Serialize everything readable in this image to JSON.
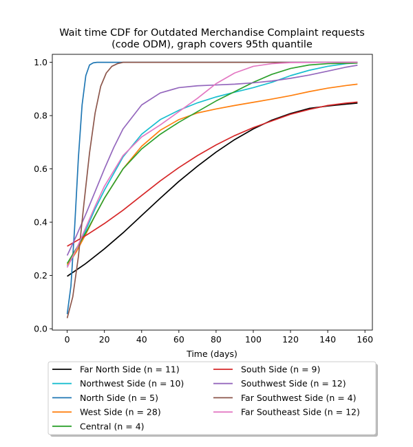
{
  "chart_data": {
    "type": "line",
    "title": "Wait time CDF for Outdated Merchandise Complaint  requests",
    "subtitle": "(code ODM), graph covers 95th quantile",
    "xlabel": "Time (days)",
    "ylabel": "",
    "xlim": [
      -8,
      164
    ],
    "ylim": [
      -0.005,
      1.03
    ],
    "xticks": [
      0,
      20,
      40,
      60,
      80,
      100,
      120,
      140,
      160
    ],
    "yticks": [
      0.0,
      0.2,
      0.4,
      0.6,
      0.8,
      1.0
    ],
    "xtick_labels": [
      "0",
      "20",
      "40",
      "60",
      "80",
      "100",
      "120",
      "140",
      "160"
    ],
    "ytick_labels": [
      "0.0",
      "0.2",
      "0.4",
      "0.6",
      "0.8",
      "1.0"
    ],
    "grid": false,
    "legend_position": "below plot, two columns",
    "series": [
      {
        "name": "Far North Side (n = 11)",
        "color": "#000000",
        "points": [
          [
            0,
            0.197
          ],
          [
            10,
            0.245
          ],
          [
            20,
            0.3
          ],
          [
            30,
            0.36
          ],
          [
            40,
            0.425
          ],
          [
            50,
            0.49
          ],
          [
            60,
            0.553
          ],
          [
            70,
            0.61
          ],
          [
            80,
            0.663
          ],
          [
            90,
            0.71
          ],
          [
            100,
            0.75
          ],
          [
            110,
            0.783
          ],
          [
            120,
            0.808
          ],
          [
            130,
            0.827
          ],
          [
            140,
            0.836
          ],
          [
            150,
            0.843
          ],
          [
            156,
            0.847
          ]
        ]
      },
      {
        "name": "Northwest Side (n = 10)",
        "color": "#17becf",
        "points": [
          [
            0,
            0.235
          ],
          [
            5,
            0.29
          ],
          [
            10,
            0.37
          ],
          [
            15,
            0.45
          ],
          [
            20,
            0.52
          ],
          [
            30,
            0.645
          ],
          [
            40,
            0.73
          ],
          [
            50,
            0.785
          ],
          [
            60,
            0.82
          ],
          [
            70,
            0.848
          ],
          [
            80,
            0.87
          ],
          [
            90,
            0.888
          ],
          [
            100,
            0.905
          ],
          [
            110,
            0.925
          ],
          [
            120,
            0.95
          ],
          [
            130,
            0.97
          ],
          [
            140,
            0.985
          ],
          [
            150,
            0.995
          ],
          [
            156,
            0.998
          ]
        ]
      },
      {
        "name": "North Side (n = 5)",
        "color": "#1f77b4",
        "points": [
          [
            0,
            0.055
          ],
          [
            2,
            0.16
          ],
          [
            4,
            0.38
          ],
          [
            6,
            0.64
          ],
          [
            8,
            0.84
          ],
          [
            10,
            0.95
          ],
          [
            12,
            0.99
          ],
          [
            14,
            0.998
          ],
          [
            16,
            1.0
          ],
          [
            30,
            1.0
          ],
          [
            60,
            1.0
          ],
          [
            100,
            1.0
          ],
          [
            156,
            1.0
          ]
        ]
      },
      {
        "name": "West Side (n = 28)",
        "color": "#ff7f0e",
        "points": [
          [
            0,
            0.24
          ],
          [
            5,
            0.29
          ],
          [
            10,
            0.355
          ],
          [
            15,
            0.425
          ],
          [
            20,
            0.49
          ],
          [
            30,
            0.6
          ],
          [
            40,
            0.685
          ],
          [
            50,
            0.745
          ],
          [
            60,
            0.785
          ],
          [
            70,
            0.81
          ],
          [
            80,
            0.825
          ],
          [
            90,
            0.838
          ],
          [
            100,
            0.85
          ],
          [
            110,
            0.862
          ],
          [
            120,
            0.875
          ],
          [
            130,
            0.89
          ],
          [
            140,
            0.903
          ],
          [
            150,
            0.913
          ],
          [
            156,
            0.918
          ]
        ]
      },
      {
        "name": "Central (n = 4)",
        "color": "#2ca02c",
        "points": [
          [
            0,
            0.245
          ],
          [
            10,
            0.36
          ],
          [
            20,
            0.49
          ],
          [
            30,
            0.6
          ],
          [
            40,
            0.675
          ],
          [
            50,
            0.73
          ],
          [
            60,
            0.775
          ],
          [
            70,
            0.815
          ],
          [
            80,
            0.855
          ],
          [
            90,
            0.89
          ],
          [
            100,
            0.925
          ],
          [
            110,
            0.955
          ],
          [
            120,
            0.977
          ],
          [
            130,
            0.99
          ],
          [
            140,
            0.995
          ],
          [
            156,
            0.997
          ]
        ]
      },
      {
        "name": "South Side (n = 9)",
        "color": "#d62728",
        "points": [
          [
            0,
            0.31
          ],
          [
            10,
            0.35
          ],
          [
            20,
            0.395
          ],
          [
            30,
            0.445
          ],
          [
            40,
            0.5
          ],
          [
            50,
            0.555
          ],
          [
            60,
            0.605
          ],
          [
            70,
            0.65
          ],
          [
            80,
            0.69
          ],
          [
            90,
            0.725
          ],
          [
            100,
            0.755
          ],
          [
            110,
            0.78
          ],
          [
            120,
            0.805
          ],
          [
            130,
            0.823
          ],
          [
            140,
            0.838
          ],
          [
            150,
            0.847
          ],
          [
            156,
            0.851
          ]
        ]
      },
      {
        "name": "Southwest Side (n = 12)",
        "color": "#9467bd",
        "points": [
          [
            0,
            0.275
          ],
          [
            5,
            0.35
          ],
          [
            10,
            0.43
          ],
          [
            15,
            0.515
          ],
          [
            20,
            0.6
          ],
          [
            25,
            0.68
          ],
          [
            30,
            0.75
          ],
          [
            40,
            0.84
          ],
          [
            50,
            0.885
          ],
          [
            60,
            0.905
          ],
          [
            70,
            0.912
          ],
          [
            80,
            0.915
          ],
          [
            90,
            0.918
          ],
          [
            100,
            0.923
          ],
          [
            110,
            0.93
          ],
          [
            120,
            0.94
          ],
          [
            130,
            0.952
          ],
          [
            140,
            0.967
          ],
          [
            150,
            0.982
          ],
          [
            156,
            0.989
          ]
        ]
      },
      {
        "name": "Far Southwest Side (n = 4)",
        "color": "#8c564b",
        "points": [
          [
            0,
            0.04
          ],
          [
            3,
            0.12
          ],
          [
            6,
            0.27
          ],
          [
            9,
            0.47
          ],
          [
            12,
            0.66
          ],
          [
            15,
            0.81
          ],
          [
            18,
            0.91
          ],
          [
            21,
            0.96
          ],
          [
            24,
            0.985
          ],
          [
            27,
            0.995
          ],
          [
            30,
            1.0
          ],
          [
            60,
            1.0
          ],
          [
            100,
            1.0
          ],
          [
            156,
            1.0
          ]
        ]
      },
      {
        "name": "Far Southeast Side (n = 12)",
        "color": "#e377c2",
        "points": [
          [
            0,
            0.23
          ],
          [
            5,
            0.3
          ],
          [
            10,
            0.38
          ],
          [
            15,
            0.46
          ],
          [
            20,
            0.535
          ],
          [
            30,
            0.65
          ],
          [
            40,
            0.72
          ],
          [
            50,
            0.765
          ],
          [
            60,
            0.815
          ],
          [
            70,
            0.865
          ],
          [
            80,
            0.92
          ],
          [
            90,
            0.96
          ],
          [
            100,
            0.985
          ],
          [
            110,
            0.995
          ],
          [
            120,
            0.999
          ],
          [
            140,
            1.0
          ],
          [
            156,
            1.0
          ]
        ]
      }
    ]
  }
}
